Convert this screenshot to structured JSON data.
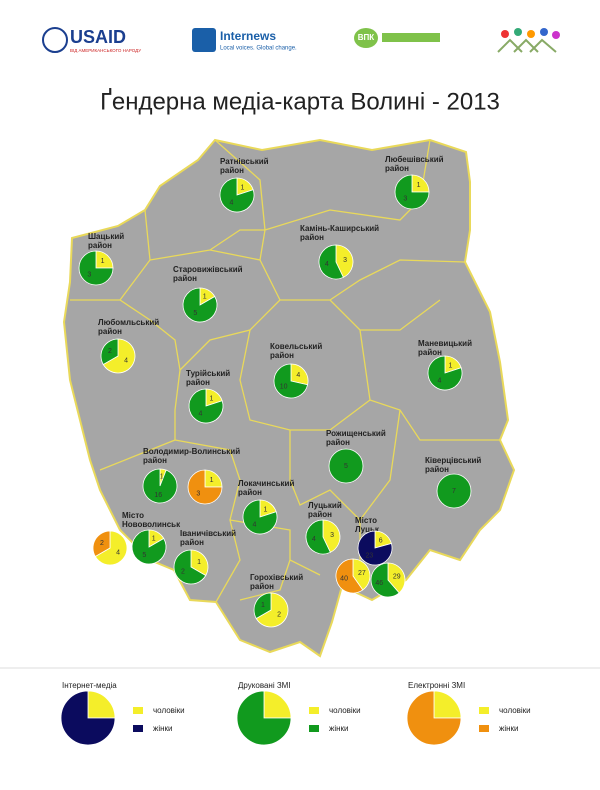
{
  "header": {
    "logos": [
      "USAID",
      "ВІД АМЕРИКАНСЬКОГО НАРОДУ",
      "Internews",
      "Local voices. Global change.",
      "ВПК"
    ]
  },
  "title": "Ґендерна медіа-карта Волині - 2013",
  "legend": [
    {
      "name": "Інтернет-медіа",
      "men": "чоловіки",
      "women": "жінки",
      "men_color": "#f4ee2a",
      "women_color": "#0b0b5e",
      "values": [
        1,
        3
      ]
    },
    {
      "name": "Друковані ЗМІ",
      "men": "чоловіки",
      "women": "жінки",
      "men_color": "#f4ee2a",
      "women_color": "#119a1e",
      "values": [
        1,
        3
      ]
    },
    {
      "name": "Електронні ЗМІ",
      "men": "чоловіки",
      "women": "жінки",
      "men_color": "#f4ee2a",
      "women_color": "#f0900f",
      "values": [
        1,
        3
      ]
    }
  ],
  "regions": [
    {
      "label": "Ратнівський район",
      "pies": [
        {
          "media": 1,
          "values": [
            1,
            4
          ]
        }
      ]
    },
    {
      "label": "Любешівський район",
      "pies": [
        {
          "media": 1,
          "values": [
            1,
            3
          ]
        }
      ]
    },
    {
      "label": "Шацький район",
      "pies": [
        {
          "media": 1,
          "values": [
            1,
            3
          ]
        }
      ]
    },
    {
      "label": "Камінь-Каширський район",
      "pies": [
        {
          "media": 1,
          "values": [
            3,
            4
          ]
        }
      ]
    },
    {
      "label": "Старовижівський район",
      "pies": [
        {
          "media": 1,
          "values": [
            1,
            5
          ]
        }
      ]
    },
    {
      "label": "Любомльський район",
      "pies": [
        {
          "media": 1,
          "values": [
            4,
            2
          ]
        }
      ]
    },
    {
      "label": "Ковельський район",
      "pies": [
        {
          "media": 1,
          "values": [
            4,
            10
          ]
        }
      ]
    },
    {
      "label": "Маневицький район",
      "pies": [
        {
          "media": 1,
          "values": [
            1,
            4
          ]
        }
      ]
    },
    {
      "label": "Турійський район",
      "pies": [
        {
          "media": 1,
          "values": [
            1,
            4
          ]
        }
      ]
    },
    {
      "label": "Рожищенський район",
      "pies": [
        {
          "media": 1,
          "values": [
            null,
            5
          ]
        }
      ]
    },
    {
      "label": "Ківерцівський район",
      "pies": [
        {
          "media": 1,
          "values": [
            null,
            7
          ]
        }
      ]
    },
    {
      "label": "Володимир-Волинський район",
      "pies": [
        {
          "media": 1,
          "values": [
            1,
            16
          ]
        },
        {
          "media": 2,
          "values": [
            1,
            3
          ]
        }
      ]
    },
    {
      "label": "Локачинський район",
      "pies": [
        {
          "media": 1,
          "values": [
            1,
            4
          ]
        }
      ]
    },
    {
      "label": "Місто Нововолинськ",
      "pies": [
        {
          "media": 2,
          "values": [
            4,
            2
          ]
        },
        {
          "media": 1,
          "values": [
            1,
            5
          ]
        }
      ]
    },
    {
      "label": "Іваничівський район",
      "pies": [
        {
          "media": 1,
          "values": [
            1,
            2
          ]
        }
      ]
    },
    {
      "label": "Луцький район",
      "pies": [
        {
          "media": 1,
          "values": [
            3,
            4
          ]
        }
      ]
    },
    {
      "label": "Місто Луцьк",
      "pies": [
        {
          "media": 0,
          "values": [
            6,
            23
          ]
        },
        {
          "media": 2,
          "values": [
            27,
            40
          ]
        },
        {
          "media": 1,
          "values": [
            29,
            46
          ]
        }
      ]
    },
    {
      "label": "Горохівський район",
      "pies": [
        {
          "media": 1,
          "values": [
            2,
            1
          ]
        }
      ]
    }
  ]
}
